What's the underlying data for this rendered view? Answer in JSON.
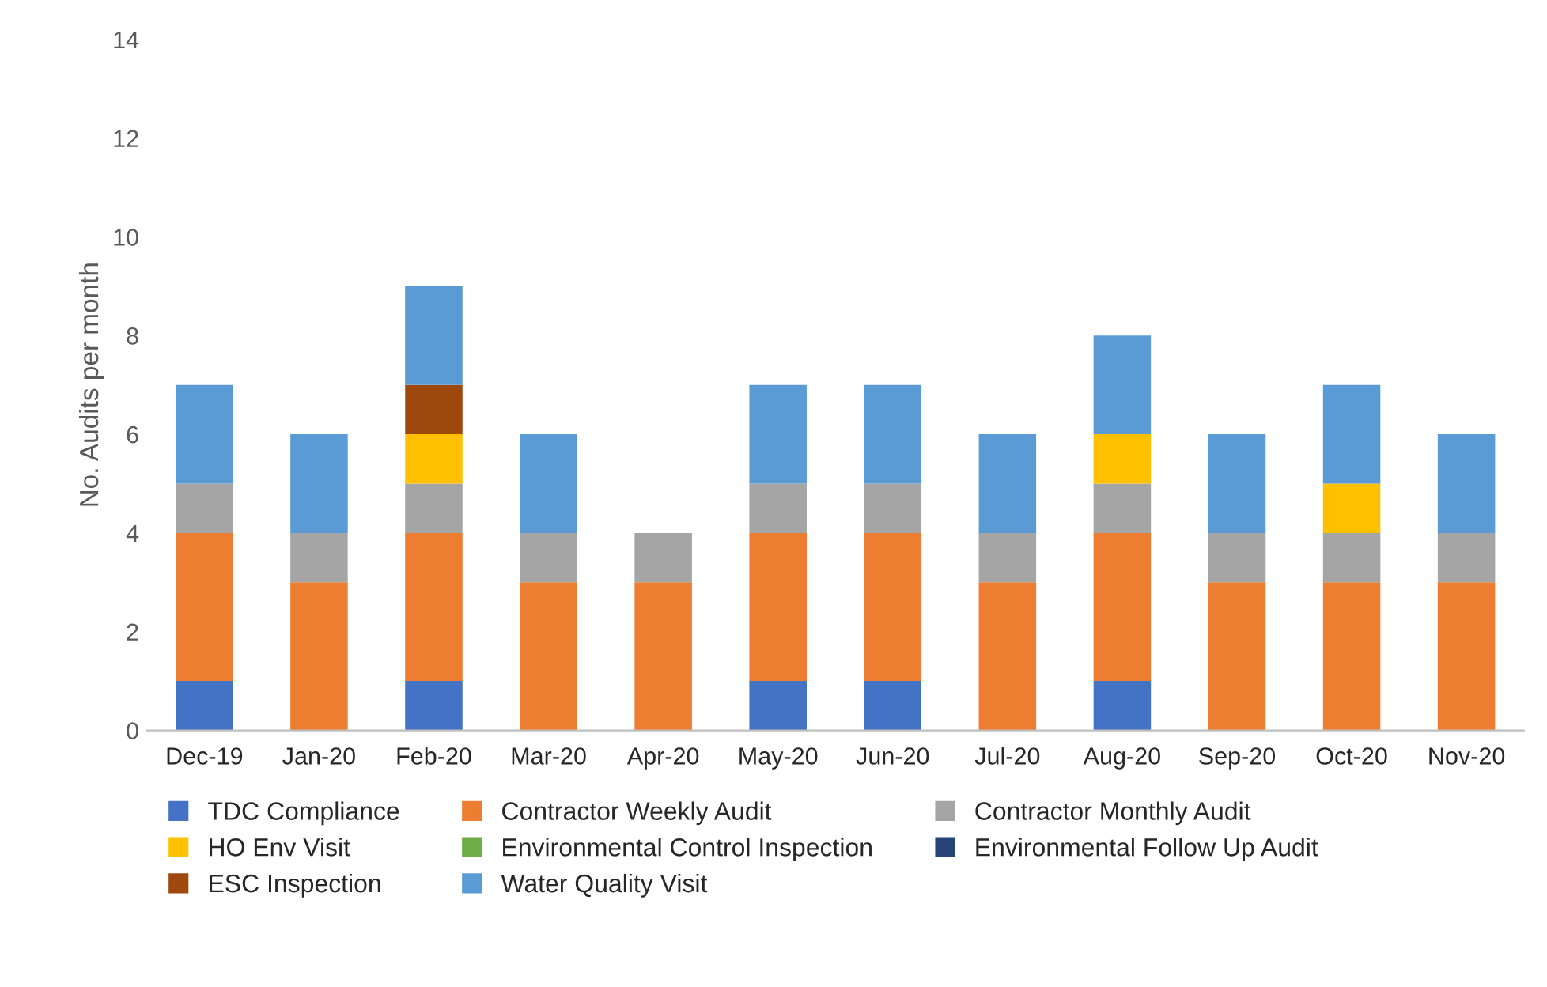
{
  "chart_data": {
    "type": "bar",
    "stacked": true,
    "ylabel": "No. Audits per month",
    "categories": [
      "Dec-19",
      "Jan-20",
      "Feb-20",
      "Mar-20",
      "Apr-20",
      "May-20",
      "Jun-20",
      "Jul-20",
      "Aug-20",
      "Sep-20",
      "Oct-20",
      "Nov-20"
    ],
    "series": [
      {
        "name": "TDC Compliance",
        "color": "#4472c4",
        "values": [
          1,
          0,
          1,
          0,
          0,
          1,
          1,
          0,
          1,
          0,
          0,
          0
        ]
      },
      {
        "name": "Contractor Weekly Audit",
        "color": "#ed7d31",
        "values": [
          3,
          3,
          3,
          3,
          3,
          3,
          3,
          3,
          3,
          3,
          3,
          3
        ]
      },
      {
        "name": "Contractor Monthly Audit",
        "color": "#a5a5a5",
        "values": [
          1,
          1,
          1,
          1,
          1,
          1,
          1,
          1,
          1,
          1,
          1,
          1
        ]
      },
      {
        "name": "HO Env Visit",
        "color": "#ffc000",
        "values": [
          0,
          0,
          1,
          0,
          0,
          0,
          0,
          0,
          1,
          0,
          1,
          0
        ]
      },
      {
        "name": "Environmental Control Inspection",
        "color": "#70ad47",
        "values": [
          0,
          0,
          0,
          0,
          0,
          0,
          0,
          0,
          0,
          0,
          0,
          0
        ]
      },
      {
        "name": "Environmental Follow Up Audit",
        "color": "#264478",
        "values": [
          0,
          0,
          0,
          0,
          0,
          0,
          0,
          0,
          0,
          0,
          0,
          0
        ]
      },
      {
        "name": "ESC Inspection",
        "color": "#9e480e",
        "values": [
          0,
          0,
          1,
          0,
          0,
          0,
          0,
          0,
          0,
          0,
          0,
          0
        ]
      },
      {
        "name": "Water Quality Visit",
        "color": "#5b9bd5",
        "values": [
          2,
          2,
          2,
          2,
          0,
          2,
          2,
          2,
          2,
          2,
          2,
          2
        ]
      }
    ],
    "ylim": [
      0,
      14
    ],
    "yticks": [
      0,
      2,
      4,
      6,
      8,
      10,
      12,
      14
    ],
    "grid": false,
    "legend": "bottom"
  }
}
